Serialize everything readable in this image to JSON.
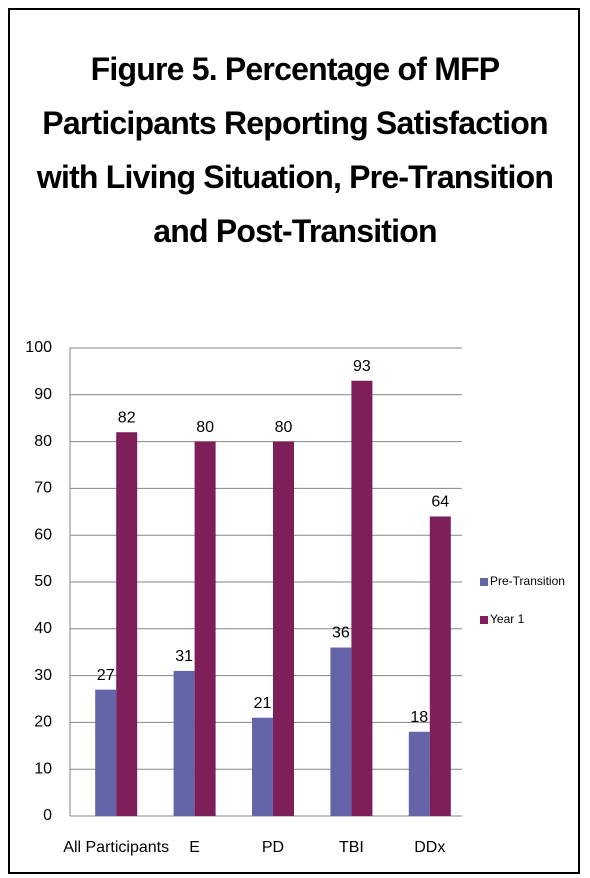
{
  "chart_data": {
    "type": "bar",
    "title": "Figure 5. Percentage of MFP Participants Reporting Satisfaction with Living Situation, Pre-Transition and Post-Transition",
    "categories": [
      "All Participants",
      "E",
      "PD",
      "TBI",
      "DDx"
    ],
    "series": [
      {
        "name": "Pre-Transition",
        "color": "#6464a8",
        "values": [
          27,
          31,
          21,
          36,
          18
        ]
      },
      {
        "name": "Year 1",
        "color": "#7f1f5a",
        "values": [
          82,
          80,
          80,
          93,
          64
        ]
      }
    ],
    "ylim": [
      0,
      100
    ],
    "yticks": [
      0,
      10,
      20,
      30,
      40,
      50,
      60,
      70,
      80,
      90,
      100
    ],
    "grid": true,
    "legend": "right"
  }
}
